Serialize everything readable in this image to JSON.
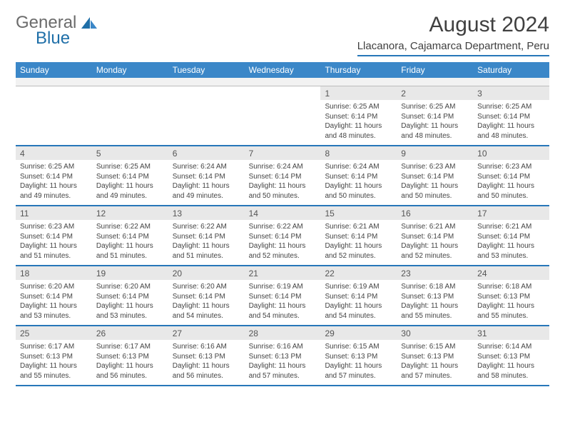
{
  "logo": {
    "general": "General",
    "blue": "Blue"
  },
  "title": "August 2024",
  "location": "Llacanora, Cajamarca Department, Peru",
  "colors": {
    "header_bg": "#3b87c8",
    "accent": "#2777b9",
    "daynum_bg": "#e8e8e8",
    "spacer_bg": "#f2f2f2",
    "text": "#333333",
    "logo_gray": "#6b6b6b",
    "logo_blue": "#1f6fa8"
  },
  "day_headers": [
    "Sunday",
    "Monday",
    "Tuesday",
    "Wednesday",
    "Thursday",
    "Friday",
    "Saturday"
  ],
  "weeks": [
    [
      null,
      null,
      null,
      null,
      {
        "n": "1",
        "sr": "Sunrise: 6:25 AM",
        "ss": "Sunset: 6:14 PM",
        "dl": "Daylight: 11 hours and 48 minutes."
      },
      {
        "n": "2",
        "sr": "Sunrise: 6:25 AM",
        "ss": "Sunset: 6:14 PM",
        "dl": "Daylight: 11 hours and 48 minutes."
      },
      {
        "n": "3",
        "sr": "Sunrise: 6:25 AM",
        "ss": "Sunset: 6:14 PM",
        "dl": "Daylight: 11 hours and 48 minutes."
      }
    ],
    [
      {
        "n": "4",
        "sr": "Sunrise: 6:25 AM",
        "ss": "Sunset: 6:14 PM",
        "dl": "Daylight: 11 hours and 49 minutes."
      },
      {
        "n": "5",
        "sr": "Sunrise: 6:25 AM",
        "ss": "Sunset: 6:14 PM",
        "dl": "Daylight: 11 hours and 49 minutes."
      },
      {
        "n": "6",
        "sr": "Sunrise: 6:24 AM",
        "ss": "Sunset: 6:14 PM",
        "dl": "Daylight: 11 hours and 49 minutes."
      },
      {
        "n": "7",
        "sr": "Sunrise: 6:24 AM",
        "ss": "Sunset: 6:14 PM",
        "dl": "Daylight: 11 hours and 50 minutes."
      },
      {
        "n": "8",
        "sr": "Sunrise: 6:24 AM",
        "ss": "Sunset: 6:14 PM",
        "dl": "Daylight: 11 hours and 50 minutes."
      },
      {
        "n": "9",
        "sr": "Sunrise: 6:23 AM",
        "ss": "Sunset: 6:14 PM",
        "dl": "Daylight: 11 hours and 50 minutes."
      },
      {
        "n": "10",
        "sr": "Sunrise: 6:23 AM",
        "ss": "Sunset: 6:14 PM",
        "dl": "Daylight: 11 hours and 50 minutes."
      }
    ],
    [
      {
        "n": "11",
        "sr": "Sunrise: 6:23 AM",
        "ss": "Sunset: 6:14 PM",
        "dl": "Daylight: 11 hours and 51 minutes."
      },
      {
        "n": "12",
        "sr": "Sunrise: 6:22 AM",
        "ss": "Sunset: 6:14 PM",
        "dl": "Daylight: 11 hours and 51 minutes."
      },
      {
        "n": "13",
        "sr": "Sunrise: 6:22 AM",
        "ss": "Sunset: 6:14 PM",
        "dl": "Daylight: 11 hours and 51 minutes."
      },
      {
        "n": "14",
        "sr": "Sunrise: 6:22 AM",
        "ss": "Sunset: 6:14 PM",
        "dl": "Daylight: 11 hours and 52 minutes."
      },
      {
        "n": "15",
        "sr": "Sunrise: 6:21 AM",
        "ss": "Sunset: 6:14 PM",
        "dl": "Daylight: 11 hours and 52 minutes."
      },
      {
        "n": "16",
        "sr": "Sunrise: 6:21 AM",
        "ss": "Sunset: 6:14 PM",
        "dl": "Daylight: 11 hours and 52 minutes."
      },
      {
        "n": "17",
        "sr": "Sunrise: 6:21 AM",
        "ss": "Sunset: 6:14 PM",
        "dl": "Daylight: 11 hours and 53 minutes."
      }
    ],
    [
      {
        "n": "18",
        "sr": "Sunrise: 6:20 AM",
        "ss": "Sunset: 6:14 PM",
        "dl": "Daylight: 11 hours and 53 minutes."
      },
      {
        "n": "19",
        "sr": "Sunrise: 6:20 AM",
        "ss": "Sunset: 6:14 PM",
        "dl": "Daylight: 11 hours and 53 minutes."
      },
      {
        "n": "20",
        "sr": "Sunrise: 6:20 AM",
        "ss": "Sunset: 6:14 PM",
        "dl": "Daylight: 11 hours and 54 minutes."
      },
      {
        "n": "21",
        "sr": "Sunrise: 6:19 AM",
        "ss": "Sunset: 6:14 PM",
        "dl": "Daylight: 11 hours and 54 minutes."
      },
      {
        "n": "22",
        "sr": "Sunrise: 6:19 AM",
        "ss": "Sunset: 6:14 PM",
        "dl": "Daylight: 11 hours and 54 minutes."
      },
      {
        "n": "23",
        "sr": "Sunrise: 6:18 AM",
        "ss": "Sunset: 6:13 PM",
        "dl": "Daylight: 11 hours and 55 minutes."
      },
      {
        "n": "24",
        "sr": "Sunrise: 6:18 AM",
        "ss": "Sunset: 6:13 PM",
        "dl": "Daylight: 11 hours and 55 minutes."
      }
    ],
    [
      {
        "n": "25",
        "sr": "Sunrise: 6:17 AM",
        "ss": "Sunset: 6:13 PM",
        "dl": "Daylight: 11 hours and 55 minutes."
      },
      {
        "n": "26",
        "sr": "Sunrise: 6:17 AM",
        "ss": "Sunset: 6:13 PM",
        "dl": "Daylight: 11 hours and 56 minutes."
      },
      {
        "n": "27",
        "sr": "Sunrise: 6:16 AM",
        "ss": "Sunset: 6:13 PM",
        "dl": "Daylight: 11 hours and 56 minutes."
      },
      {
        "n": "28",
        "sr": "Sunrise: 6:16 AM",
        "ss": "Sunset: 6:13 PM",
        "dl": "Daylight: 11 hours and 57 minutes."
      },
      {
        "n": "29",
        "sr": "Sunrise: 6:15 AM",
        "ss": "Sunset: 6:13 PM",
        "dl": "Daylight: 11 hours and 57 minutes."
      },
      {
        "n": "30",
        "sr": "Sunrise: 6:15 AM",
        "ss": "Sunset: 6:13 PM",
        "dl": "Daylight: 11 hours and 57 minutes."
      },
      {
        "n": "31",
        "sr": "Sunrise: 6:14 AM",
        "ss": "Sunset: 6:13 PM",
        "dl": "Daylight: 11 hours and 58 minutes."
      }
    ]
  ]
}
